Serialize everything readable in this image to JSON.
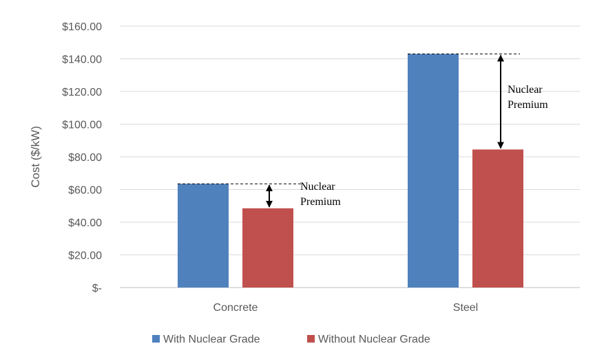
{
  "chart_data": {
    "type": "bar",
    "title": "",
    "xlabel": "",
    "ylabel": "Cost ($/kW)",
    "ylim": [
      0,
      160
    ],
    "ytick_values": [
      0,
      20,
      40,
      60,
      80,
      100,
      120,
      140,
      160
    ],
    "ytick_labels": [
      "$-",
      "$20.00",
      "$40.00",
      "$60.00",
      "$80.00",
      "$100.00",
      "$120.00",
      "$140.00",
      "$160.00"
    ],
    "categories": [
      "Concrete",
      "Steel"
    ],
    "series": [
      {
        "name": "With Nuclear Grade",
        "color": "#4F81BD",
        "values": [
          63.5,
          143
        ]
      },
      {
        "name": "Without Nuclear Grade",
        "color": "#C0504D",
        "values": [
          48.5,
          84.5
        ]
      }
    ],
    "grid": true,
    "legend": "bottom",
    "annotations": [
      {
        "category": "Concrete",
        "line1": "Nuclear",
        "line2": "Premium"
      },
      {
        "category": "Steel",
        "line1": "Nuclear",
        "line2": "Premium"
      }
    ]
  }
}
